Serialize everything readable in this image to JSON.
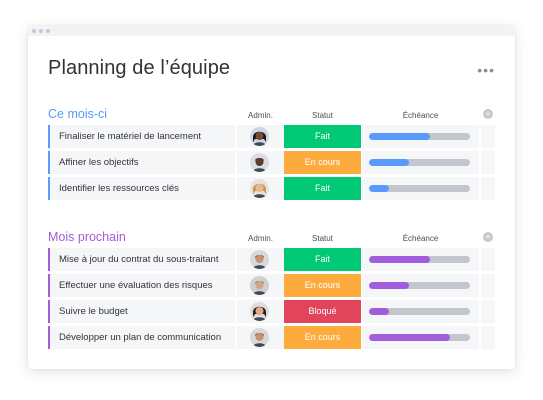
{
  "board": {
    "title": "Planning de l’équipe",
    "more_label": "•••"
  },
  "columns": {
    "person": "Admin.",
    "status": "Statut",
    "timeline": "Échéance",
    "add": "+"
  },
  "colors": {
    "done": "#00c875",
    "working": "#fdab3d",
    "stuck": "#e2445c",
    "group_this_month": "#579bfc",
    "group_next_month": "#a25ddc"
  },
  "groups": [
    {
      "title": "Ce mois-ci",
      "color": "#579bfc",
      "items": [
        {
          "name": "Finaliser le matériel de lancement",
          "status": "Fait",
          "status_color": "#00c875",
          "avatar": "avatar-woman-curly",
          "progress": 0.6
        },
        {
          "name": "Affiner les objectifs",
          "status": "En cours",
          "status_color": "#fdab3d",
          "avatar": "avatar-man-dark",
          "progress": 0.4
        },
        {
          "name": "Identifier les ressources clés",
          "status": "Fait",
          "status_color": "#00c875",
          "avatar": "avatar-woman-blonde",
          "progress": 0.2
        }
      ]
    },
    {
      "title": "Mois prochain",
      "color": "#a25ddc",
      "items": [
        {
          "name": "Mise à jour du contrat du sous-traitant",
          "status": "Fait",
          "status_color": "#00c875",
          "avatar": "avatar-man-beard",
          "progress": 0.6
        },
        {
          "name": "Effectuer une évaluation des risques",
          "status": "En cours",
          "status_color": "#fdab3d",
          "avatar": "avatar-man-grey",
          "progress": 0.4
        },
        {
          "name": "Suivre le budget",
          "status": "Bloqué",
          "status_color": "#e2445c",
          "avatar": "avatar-woman-dark-hair",
          "progress": 0.2
        },
        {
          "name": "Développer un plan de communication",
          "status": "En cours",
          "status_color": "#fdab3d",
          "avatar": "avatar-man-beard",
          "progress": 0.8
        }
      ]
    }
  ]
}
